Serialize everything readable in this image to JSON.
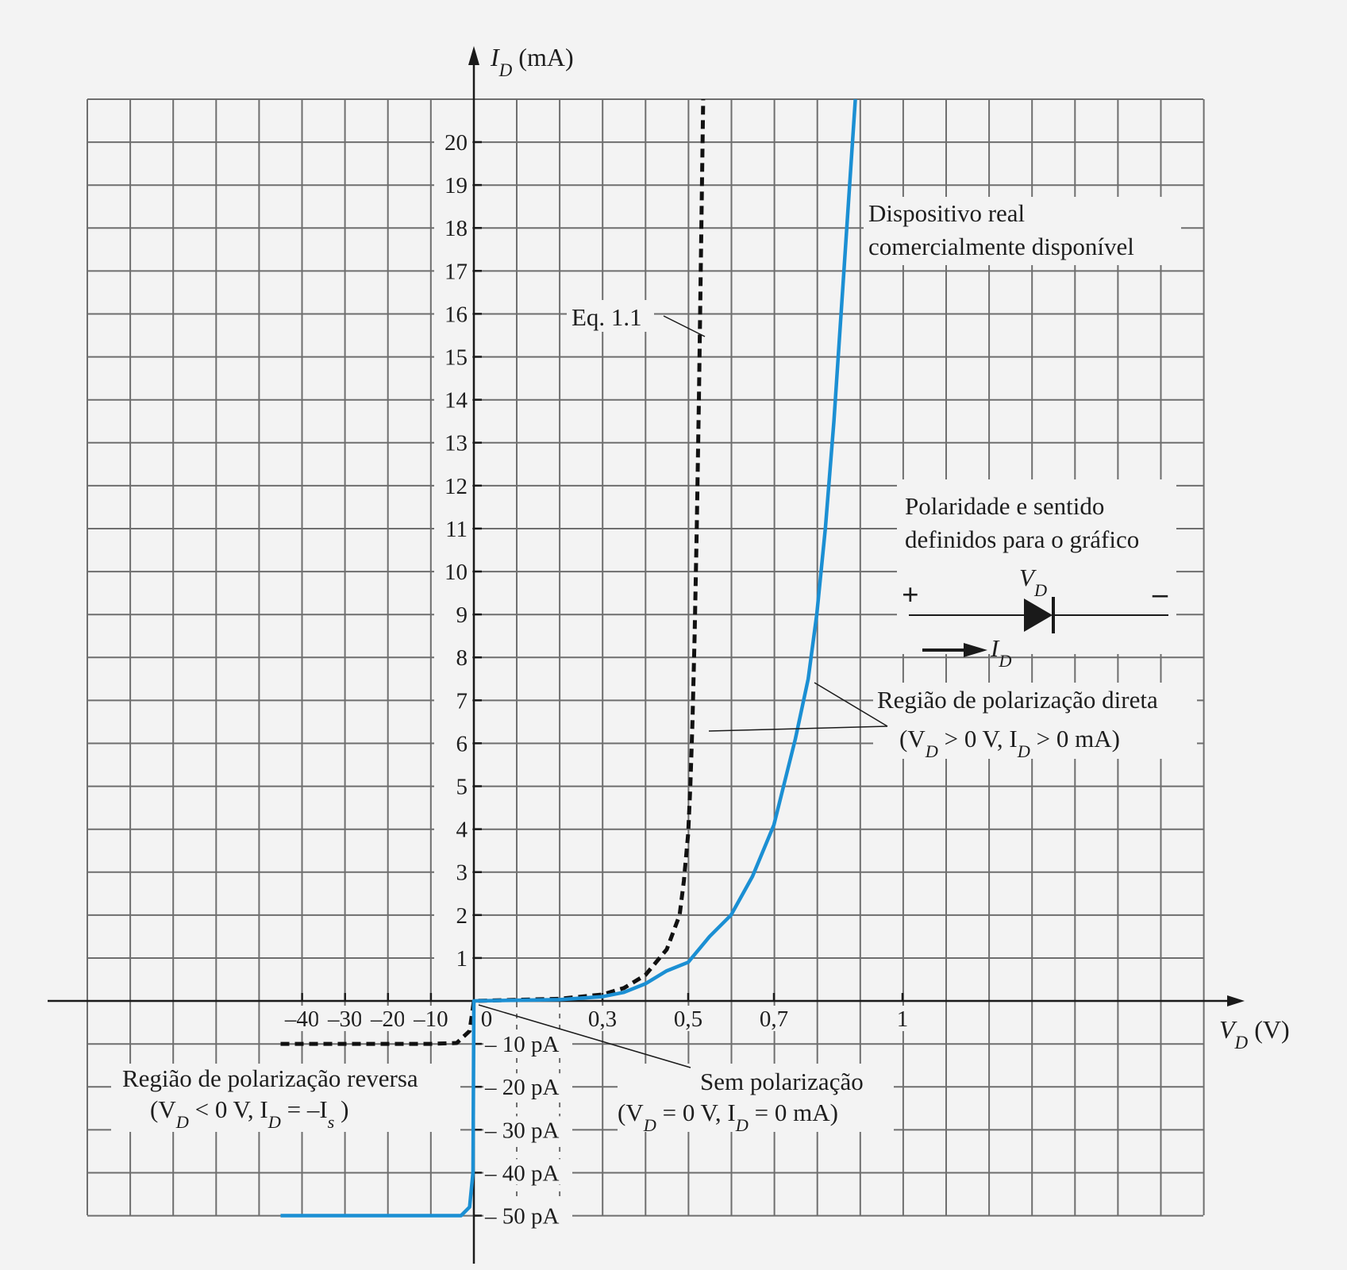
{
  "chart_data": {
    "type": "line",
    "y_axis": {
      "title_main": "I",
      "title_sub": "D",
      "title_unit": " (mA)",
      "ticks": [
        "1",
        "2",
        "3",
        "4",
        "5",
        "6",
        "7",
        "8",
        "9",
        "10",
        "11",
        "12",
        "13",
        "14",
        "15",
        "16",
        "17",
        "18",
        "19",
        "20"
      ],
      "ylim": [
        0,
        21
      ],
      "negative_ticks": [
        "– 10 pA",
        "– 20 pA",
        "– 30 pA",
        "– 40 pA",
        "– 50 pA"
      ]
    },
    "x_axis": {
      "title_main": "V",
      "title_sub": "D",
      "title_unit": " (V)",
      "negative_ticks": [
        "–40",
        "–30",
        "–20",
        "–10"
      ],
      "positive_ticks": [
        "0",
        "0,3",
        "0,5",
        "0,7",
        "1"
      ]
    },
    "grid": true,
    "series": [
      {
        "name": "Eq. 1.1",
        "style": "dashed",
        "color": "#111111",
        "forward": [
          [
            0,
            0
          ],
          [
            0.2,
            0.05
          ],
          [
            0.3,
            0.15
          ],
          [
            0.35,
            0.3
          ],
          [
            0.4,
            0.6
          ],
          [
            0.45,
            1.2
          ],
          [
            0.48,
            2.0
          ],
          [
            0.49,
            2.8
          ],
          [
            0.5,
            3.9
          ],
          [
            0.505,
            5.0
          ],
          [
            0.51,
            6.5
          ],
          [
            0.515,
            8.5
          ],
          [
            0.52,
            11
          ],
          [
            0.525,
            14
          ],
          [
            0.53,
            17.5
          ],
          [
            0.535,
            21
          ]
        ],
        "reverse_pA": [
          [
            -45,
            -10
          ],
          [
            -10,
            -10
          ],
          [
            -4,
            -9.8
          ],
          [
            -1,
            -7
          ],
          [
            0,
            0
          ]
        ]
      },
      {
        "name": "Dispositivo real comercialmente disponível",
        "style": "solid",
        "color": "#1b8fd3",
        "forward": [
          [
            0,
            0
          ],
          [
            0.2,
            0.03
          ],
          [
            0.3,
            0.1
          ],
          [
            0.35,
            0.2
          ],
          [
            0.4,
            0.4
          ],
          [
            0.45,
            0.7
          ],
          [
            0.5,
            0.9
          ],
          [
            0.55,
            1.5
          ],
          [
            0.6,
            2.0
          ],
          [
            0.65,
            2.9
          ],
          [
            0.7,
            4.1
          ],
          [
            0.75,
            6.1
          ],
          [
            0.78,
            7.5
          ],
          [
            0.8,
            9.0
          ],
          [
            0.82,
            11.0
          ],
          [
            0.84,
            13.5
          ],
          [
            0.86,
            16.5
          ],
          [
            0.88,
            19.5
          ],
          [
            0.89,
            21
          ]
        ],
        "reverse_pA": [
          [
            -45,
            -50
          ],
          [
            -3,
            -50
          ],
          [
            -1,
            -48
          ],
          [
            -0.2,
            -40
          ],
          [
            0,
            0
          ]
        ]
      }
    ],
    "annotations": {
      "eq_label": "Eq. 1.1",
      "real_device_line1": "Dispositivo real",
      "real_device_line2": "comercialmente disponível",
      "polarity_line1": "Polaridade e sentido",
      "polarity_line2": "definidos para o gráfico",
      "plus": "+",
      "minus": "–",
      "vd_main": "V",
      "vd_sub": "D",
      "id_main": "I",
      "id_sub": "D",
      "forward_line1": "Região de polarização direta",
      "forward_open": "(V",
      "forward_sub1": "D",
      "forward_mid": " > 0 V,  I",
      "forward_sub2": "D",
      "forward_close": " > 0  mA)",
      "reverse_line1": "Região de polarização reversa",
      "reverse_open": "(V",
      "reverse_sub1": "D",
      "reverse_mid": " < 0 V, I",
      "reverse_sub2": "D",
      "reverse_eq": " = –I",
      "reverse_sub3": "s",
      "reverse_close": " )",
      "nobias_line1": "Sem polarização",
      "nobias_open": "(V",
      "nobias_sub1": "D",
      "nobias_mid": " = 0 V, I",
      "nobias_sub2": "D",
      "nobias_close": " = 0 mA)"
    }
  }
}
